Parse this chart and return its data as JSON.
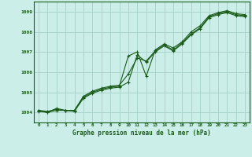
{
  "title": "Graphe pression niveau de la mer (hPa)",
  "bg_color": "#cceee8",
  "grid_color": "#aad4cc",
  "line_color": "#1a5c1a",
  "x_labels": [
    "0",
    "1",
    "2",
    "3",
    "4",
    "5",
    "6",
    "7",
    "8",
    "9",
    "10",
    "11",
    "12",
    "13",
    "14",
    "15",
    "16",
    "17",
    "18",
    "19",
    "20",
    "21",
    "22",
    "23"
  ],
  "ylim": [
    1003.5,
    1009.5
  ],
  "yticks": [
    1004,
    1005,
    1006,
    1007,
    1008,
    1009
  ],
  "series1": [
    1004.1,
    1004.0,
    1004.2,
    1004.1,
    1004.1,
    1004.8,
    1005.05,
    1005.2,
    1005.3,
    1005.35,
    1005.9,
    1006.7,
    1006.55,
    1007.05,
    1007.35,
    1007.1,
    1007.45,
    1007.9,
    1008.2,
    1008.75,
    1008.9,
    1009.0,
    1008.85,
    1008.8
  ],
  "series2": [
    1004.05,
    1004.0,
    1004.1,
    1004.1,
    1004.05,
    1004.7,
    1004.95,
    1005.1,
    1005.2,
    1005.25,
    1005.5,
    1006.85,
    1006.5,
    1007.0,
    1007.3,
    1007.05,
    1007.4,
    1007.85,
    1008.15,
    1008.7,
    1008.85,
    1008.95,
    1008.8,
    1008.75
  ],
  "series3": [
    1004.1,
    1004.05,
    1004.15,
    1004.1,
    1004.1,
    1004.75,
    1005.0,
    1005.15,
    1005.25,
    1005.3,
    1006.8,
    1007.0,
    1005.8,
    1007.1,
    1007.4,
    1007.2,
    1007.5,
    1008.0,
    1008.3,
    1008.8,
    1008.95,
    1009.05,
    1008.9,
    1008.85
  ]
}
